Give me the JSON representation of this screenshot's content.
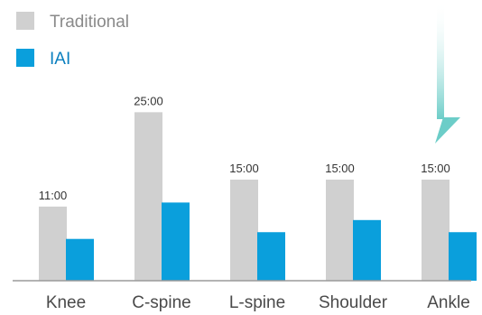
{
  "chart_data": {
    "type": "bar",
    "categories": [
      "Knee",
      "C-spine",
      "L-spine",
      "Shoulder",
      "Ankle"
    ],
    "series": [
      {
        "name": "Traditional",
        "values": [
          11,
          25,
          15,
          15,
          15
        ],
        "data_labels": [
          "11:00",
          "25:00",
          "15:00",
          "15:00",
          "15:00"
        ],
        "color": "#d0d0d0"
      },
      {
        "name": "IAI",
        "values": [
          6.2,
          11.6,
          7.2,
          9.0,
          7.2
        ],
        "color": "#0a9fdc"
      }
    ],
    "ylim": [
      0,
      30
    ],
    "grid": false,
    "legend": "top-left",
    "annotation": {
      "type": "down-arrow",
      "target_category": "Ankle",
      "color": "#6ccdc8"
    },
    "colors": {
      "axis": "#9a9a9a",
      "tick_label": "#4a4a4a",
      "data_label": "#333333",
      "legend_traditional_text": "#8a8a8a",
      "legend_iai_text": "#0a7fbf"
    }
  }
}
